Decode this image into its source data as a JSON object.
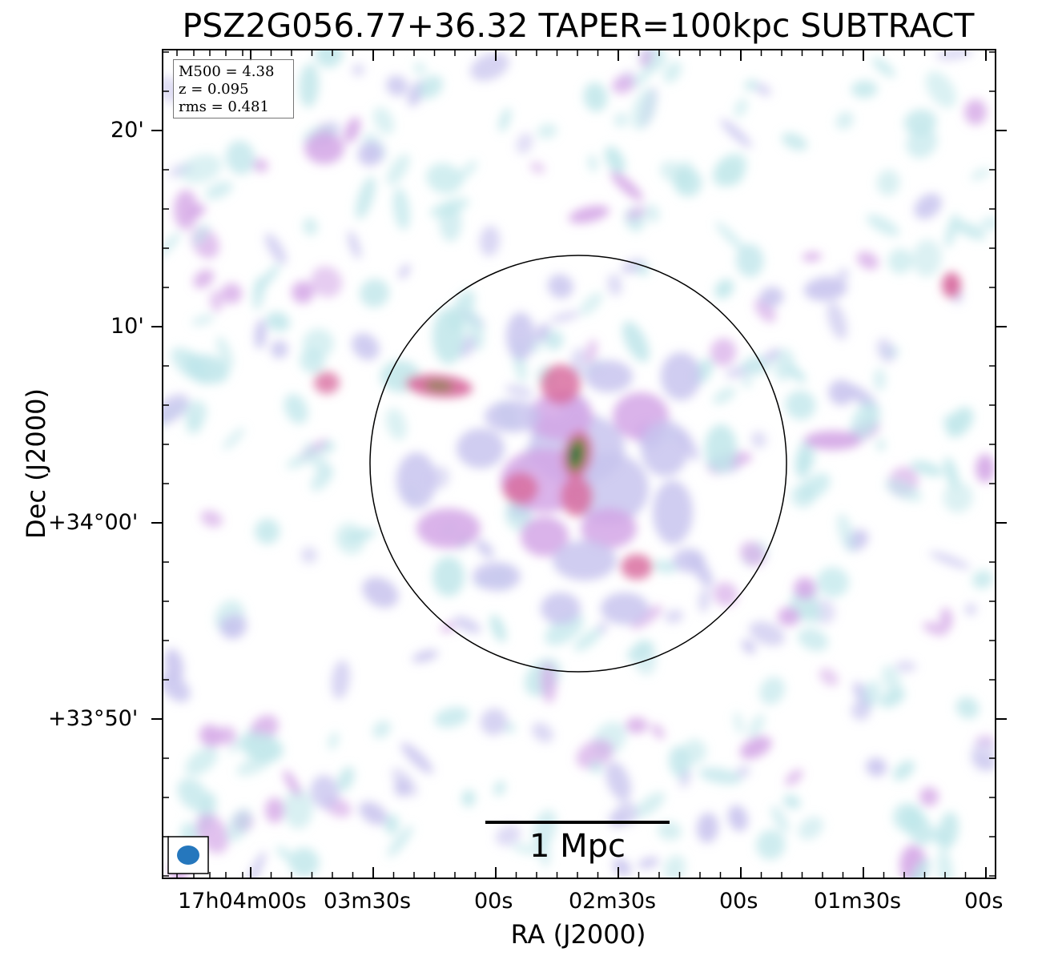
{
  "title": "PSZ2G056.77+36.32 TAPER=100kpc SUBTRACT",
  "xlabel": "RA (J2000)",
  "ylabel": "Dec (J2000)",
  "x_ticks": [
    "17h04m00s",
    "03m30s",
    "00s",
    "02m30s",
    "00s",
    "01m30s",
    "00s"
  ],
  "y_ticks": [
    "20'",
    "10'",
    "+34°00'",
    "+33°50'"
  ],
  "stats": {
    "m500": "M500 = 4.38",
    "z": "z = 0.095",
    "rms": "rms = 0.481"
  },
  "scalebar": {
    "label": "1 Mpc"
  },
  "colors": {
    "faint": "#bfe6ea",
    "low": "#c8c4ee",
    "mid": "#d4a6e6",
    "high": "#d96ea0",
    "peak": "#7a8a40",
    "core": "#0f6e4a",
    "beam": "#2577bd"
  }
}
